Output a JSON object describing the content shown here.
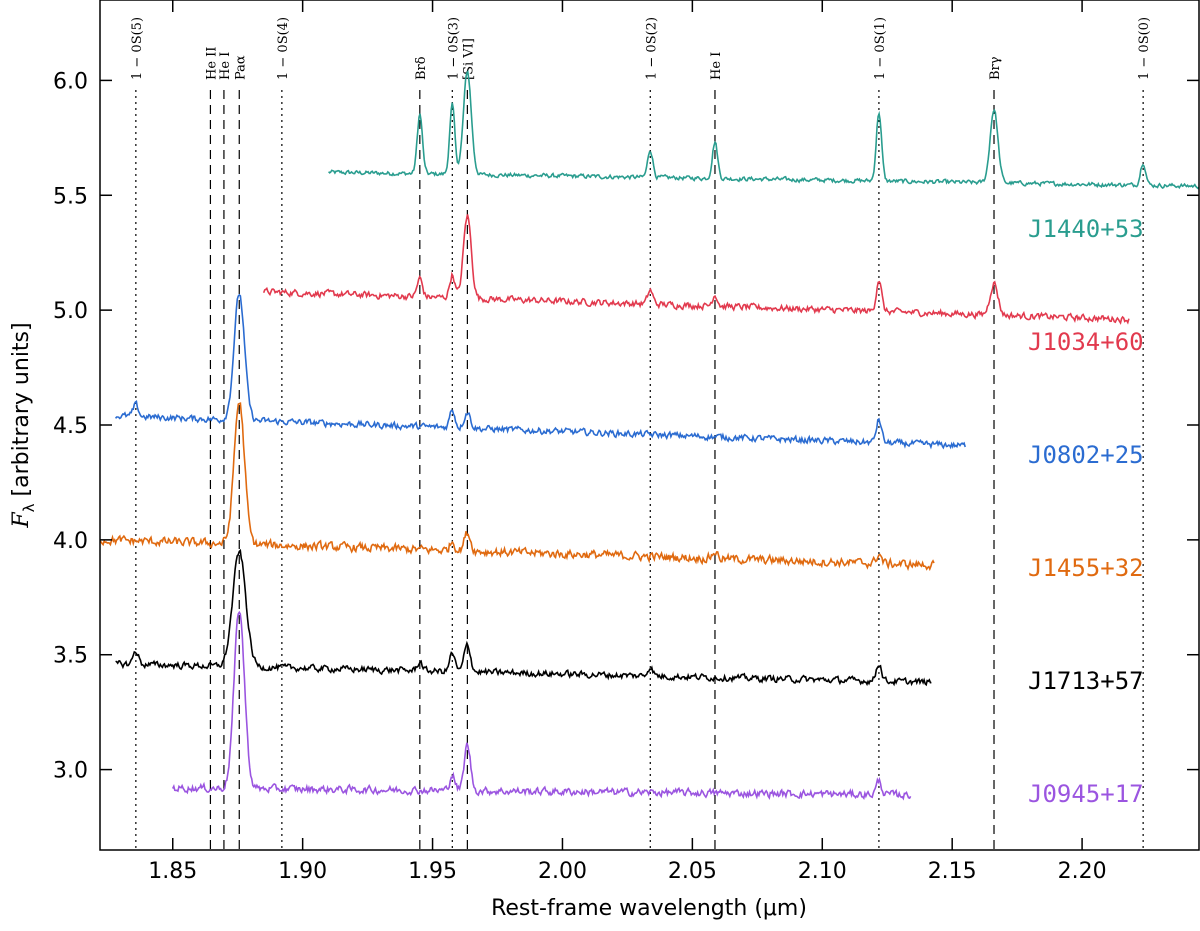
{
  "chart_data": {
    "type": "line",
    "title": "",
    "xlabel": "Rest-frame wavelength (μm)",
    "ylabel": "F_λ [arbitrary units]",
    "ylabel_symbol": "F",
    "ylabel_sub": "λ",
    "ylabel_text": " [arbitrary units]",
    "xlim": [
      1.822,
      2.245
    ],
    "ylim": [
      2.65,
      6.35
    ],
    "xticks": [
      1.85,
      1.9,
      1.95,
      2.0,
      2.05,
      2.1,
      2.15,
      2.2
    ],
    "xtick_labels": [
      "1.85",
      "1.90",
      "1.95",
      "2.00",
      "2.05",
      "2.10",
      "2.15",
      "2.20"
    ],
    "yticks": [
      3.0,
      3.5,
      4.0,
      4.5,
      5.0,
      5.5,
      6.0
    ],
    "ytick_labels": [
      "3.0",
      "3.5",
      "4.0",
      "4.5",
      "5.0",
      "5.5",
      "6.0"
    ],
    "grid": false,
    "reference_lines": [
      {
        "name": "1 − 0S(5)",
        "x": 1.8358,
        "style": "dotted"
      },
      {
        "name": "He II",
        "x": 1.8645,
        "style": "dashed"
      },
      {
        "name": "He I",
        "x": 1.8697,
        "style": "dashed"
      },
      {
        "name": "Paα",
        "x": 1.8756,
        "style": "dashed"
      },
      {
        "name": "1 − 0S(4)",
        "x": 1.892,
        "style": "dotted"
      },
      {
        "name": "Brδ",
        "x": 1.9451,
        "style": "dashed"
      },
      {
        "name": "1 − 0S(3)",
        "x": 1.9576,
        "style": "dotted"
      },
      {
        "name": "[Si VI]",
        "x": 1.9634,
        "style": "dashed"
      },
      {
        "name": "1 − 0S(2)",
        "x": 2.0338,
        "style": "dotted"
      },
      {
        "name": "He I",
        "x": 2.0587,
        "style": "dashed"
      },
      {
        "name": "1 − 0S(1)",
        "x": 2.1218,
        "style": "dotted"
      },
      {
        "name": "Brγ",
        "x": 2.1661,
        "style": "dashed"
      },
      {
        "name": "1 − 0S(0)",
        "x": 2.2235,
        "style": "dotted"
      }
    ],
    "series": [
      {
        "name": "J1440+53",
        "color": "#2a9d8f",
        "x_range": [
          1.91,
          2.245
        ],
        "baseline": [
          5.6,
          5.54
        ],
        "noise": 0.008,
        "lines": [
          [
            1.9451,
            0.26,
            0.001
          ],
          [
            1.9576,
            0.3,
            0.001
          ],
          [
            1.9634,
            0.45,
            0.0015
          ],
          [
            2.0338,
            0.12,
            0.001
          ],
          [
            2.0587,
            0.16,
            0.001
          ],
          [
            2.1218,
            0.3,
            0.001
          ],
          [
            2.1661,
            0.32,
            0.0015
          ],
          [
            2.2235,
            0.1,
            0.001
          ]
        ]
      },
      {
        "name": "J1034+60",
        "color": "#e23a4e",
        "x_range": [
          1.885,
          2.218
        ],
        "baseline": [
          5.08,
          4.96
        ],
        "noise": 0.012,
        "lines": [
          [
            1.9451,
            0.08,
            0.001
          ],
          [
            1.9576,
            0.1,
            0.001
          ],
          [
            1.9634,
            0.36,
            0.0015
          ],
          [
            2.0338,
            0.06,
            0.001
          ],
          [
            2.0587,
            0.05,
            0.001
          ],
          [
            2.1218,
            0.14,
            0.001
          ],
          [
            2.1661,
            0.14,
            0.0015
          ]
        ]
      },
      {
        "name": "J0802+25",
        "color": "#2b6cd1",
        "x_range": [
          1.828,
          2.155
        ],
        "baseline": [
          4.54,
          4.41
        ],
        "noise": 0.012,
        "lines": [
          [
            1.8358,
            0.05,
            0.001
          ],
          [
            1.8756,
            0.55,
            0.002
          ],
          [
            1.9576,
            0.08,
            0.001
          ],
          [
            1.9634,
            0.07,
            0.0012
          ],
          [
            2.1218,
            0.1,
            0.001
          ]
        ]
      },
      {
        "name": "J1455+32",
        "color": "#e06a10",
        "x_range": [
          1.822,
          2.143
        ],
        "baseline": [
          4.0,
          3.89
        ],
        "noise": 0.016,
        "lines": [
          [
            1.8756,
            0.62,
            0.002
          ],
          [
            1.9576,
            0.04,
            0.001
          ],
          [
            1.9634,
            0.08,
            0.0012
          ],
          [
            2.0587,
            0.03,
            0.001
          ],
          [
            2.1218,
            0.04,
            0.001
          ]
        ]
      },
      {
        "name": "J1713+57",
        "color": "#000000",
        "x_range": [
          1.828,
          2.142
        ],
        "baseline": [
          3.46,
          3.38
        ],
        "noise": 0.012,
        "lines": [
          [
            1.8358,
            0.06,
            0.001
          ],
          [
            1.8756,
            0.5,
            0.0025
          ],
          [
            1.9451,
            0.04,
            0.001
          ],
          [
            1.9576,
            0.08,
            0.001
          ],
          [
            1.9634,
            0.12,
            0.0012
          ],
          [
            2.0338,
            0.04,
            0.001
          ],
          [
            2.1218,
            0.08,
            0.001
          ]
        ]
      },
      {
        "name": "J0945+17",
        "color": "#9b55e0",
        "x_range": [
          1.85,
          2.134
        ],
        "baseline": [
          2.92,
          2.89
        ],
        "noise": 0.014,
        "lines": [
          [
            1.8756,
            0.78,
            0.002
          ],
          [
            1.9576,
            0.07,
            0.001
          ],
          [
            1.9634,
            0.2,
            0.0012
          ],
          [
            2.1218,
            0.06,
            0.001
          ]
        ]
      }
    ]
  }
}
